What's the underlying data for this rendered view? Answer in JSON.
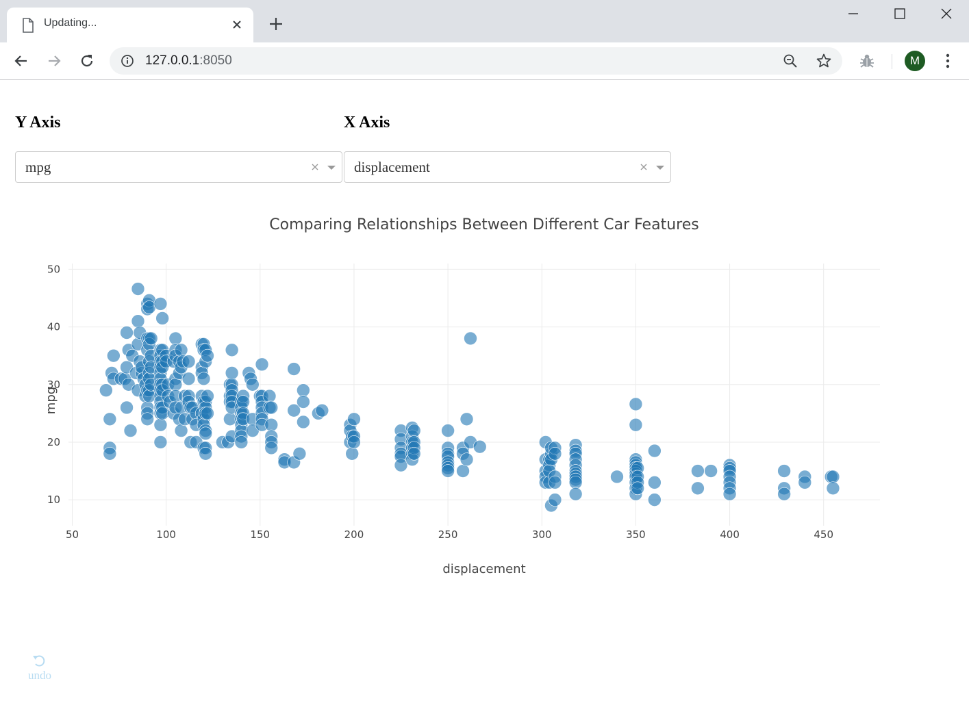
{
  "browser": {
    "tab_title": "Updating...",
    "url_host": "127.0.0.1",
    "url_port": ":8050",
    "avatar_letter": "M"
  },
  "controls": {
    "y_axis_label": "Y Axis",
    "x_axis_label": "X Axis",
    "y_dropdown_value": "mpg",
    "x_dropdown_value": "displacement"
  },
  "undo_label": "undo",
  "colors": {
    "marker": "#1f77b4",
    "undo": "#b8dcf2"
  },
  "chart_data": {
    "type": "scatter",
    "title": "Comparing Relationships Between Different Car Features",
    "xlabel": "displacement",
    "ylabel": "mpg",
    "xlim": [
      48,
      480
    ],
    "ylim": [
      5.5,
      51
    ],
    "xticks": [
      50,
      100,
      150,
      200,
      250,
      300,
      350,
      400,
      450
    ],
    "yticks": [
      10,
      20,
      30,
      40,
      50
    ],
    "grid": true,
    "series": [
      {
        "points": [
          [
            68,
            29
          ],
          [
            70,
            24
          ],
          [
            70,
            19
          ],
          [
            70,
            18
          ],
          [
            72,
            35
          ],
          [
            71,
            32
          ],
          [
            72,
            31
          ],
          [
            76,
            31
          ],
          [
            78,
            31
          ],
          [
            79,
            33
          ],
          [
            79,
            39
          ],
          [
            79,
            26
          ],
          [
            80,
            36
          ],
          [
            80,
            30
          ],
          [
            81,
            22
          ],
          [
            82,
            35
          ],
          [
            84,
            32
          ],
          [
            85,
            46.6
          ],
          [
            85,
            41
          ],
          [
            85,
            37
          ],
          [
            85,
            29
          ],
          [
            86,
            39
          ],
          [
            86,
            34
          ],
          [
            87,
            32
          ],
          [
            87,
            33
          ],
          [
            88,
            31
          ],
          [
            89,
            30
          ],
          [
            89,
            28
          ],
          [
            90,
            44
          ],
          [
            90,
            43.1
          ],
          [
            90,
            38
          ],
          [
            90,
            36
          ],
          [
            90,
            29
          ],
          [
            90,
            26
          ],
          [
            90,
            25
          ],
          [
            90,
            24
          ],
          [
            91,
            44.6
          ],
          [
            91,
            43.4
          ],
          [
            91,
            38
          ],
          [
            91,
            37
          ],
          [
            91,
            34
          ],
          [
            91,
            32
          ],
          [
            91,
            31
          ],
          [
            91,
            29
          ],
          [
            91,
            28
          ],
          [
            92,
            38
          ],
          [
            92,
            35
          ],
          [
            92,
            33
          ],
          [
            92,
            30
          ],
          [
            97,
            44
          ],
          [
            97,
            36
          ],
          [
            97,
            35
          ],
          [
            97,
            34
          ],
          [
            97,
            33
          ],
          [
            97,
            32
          ],
          [
            97,
            31
          ],
          [
            97,
            30
          ],
          [
            97,
            29
          ],
          [
            97,
            28
          ],
          [
            97,
            27
          ],
          [
            97,
            26
          ],
          [
            97,
            25
          ],
          [
            97,
            23
          ],
          [
            97,
            20
          ],
          [
            98,
            41.5
          ],
          [
            98,
            36
          ],
          [
            98,
            34
          ],
          [
            98,
            33
          ],
          [
            98,
            30
          ],
          [
            98,
            29
          ],
          [
            98,
            26
          ],
          [
            98,
            25
          ],
          [
            100,
            35
          ],
          [
            100,
            34
          ],
          [
            101,
            30
          ],
          [
            101,
            28
          ],
          [
            102,
            27
          ],
          [
            104,
            25
          ],
          [
            104,
            34
          ],
          [
            105,
            38
          ],
          [
            105,
            36
          ],
          [
            105,
            35
          ],
          [
            105,
            31
          ],
          [
            105,
            30
          ],
          [
            105,
            28
          ],
          [
            105,
            26
          ],
          [
            107,
            34
          ],
          [
            107,
            32
          ],
          [
            107,
            24
          ],
          [
            108,
            22
          ],
          [
            108,
            36
          ],
          [
            108,
            33
          ],
          [
            108,
            26
          ],
          [
            109,
            34
          ],
          [
            110,
            28
          ],
          [
            110,
            24
          ],
          [
            112,
            34
          ],
          [
            112,
            31
          ],
          [
            112,
            28
          ],
          [
            112,
            27
          ],
          [
            113,
            26
          ],
          [
            113,
            20
          ],
          [
            114,
            26
          ],
          [
            114,
            24
          ],
          [
            116,
            25
          ],
          [
            116,
            23
          ],
          [
            116,
            20
          ],
          [
            119,
            37
          ],
          [
            119,
            33
          ],
          [
            119,
            32
          ],
          [
            119,
            28
          ],
          [
            119,
            25
          ],
          [
            120,
            24
          ],
          [
            120,
            37
          ],
          [
            120,
            36
          ],
          [
            120,
            31
          ],
          [
            120,
            27
          ],
          [
            120,
            23
          ],
          [
            120,
            19
          ],
          [
            121,
            36
          ],
          [
            121,
            34
          ],
          [
            121,
            27
          ],
          [
            121,
            26
          ],
          [
            121,
            25
          ],
          [
            121,
            22
          ],
          [
            121,
            21.5
          ],
          [
            121,
            19
          ],
          [
            121,
            18
          ],
          [
            122,
            35
          ],
          [
            122,
            28
          ],
          [
            122,
            25
          ],
          [
            130,
            20
          ],
          [
            133,
            20
          ],
          [
            134,
            30
          ],
          [
            134,
            28
          ],
          [
            134,
            27
          ],
          [
            134,
            24
          ],
          [
            135,
            36
          ],
          [
            135,
            32
          ],
          [
            135,
            30
          ],
          [
            135,
            29
          ],
          [
            135,
            28
          ],
          [
            135,
            27
          ],
          [
            135,
            26
          ],
          [
            135,
            21
          ],
          [
            140,
            27
          ],
          [
            140,
            26
          ],
          [
            140,
            25
          ],
          [
            140,
            24
          ],
          [
            140,
            23
          ],
          [
            140,
            22
          ],
          [
            140,
            21
          ],
          [
            140,
            20
          ],
          [
            141,
            28
          ],
          [
            141,
            27
          ],
          [
            141,
            25
          ],
          [
            141,
            24
          ],
          [
            144,
            32
          ],
          [
            145,
            31
          ],
          [
            146,
            30
          ],
          [
            146,
            24
          ],
          [
            146,
            22
          ],
          [
            150,
            28
          ],
          [
            151,
            33.5
          ],
          [
            151,
            28
          ],
          [
            151,
            27
          ],
          [
            151,
            26
          ],
          [
            151,
            25
          ],
          [
            151,
            24
          ],
          [
            151,
            23
          ],
          [
            155,
            28
          ],
          [
            155,
            26
          ],
          [
            156,
            26
          ],
          [
            156,
            23
          ],
          [
            156,
            21
          ],
          [
            156,
            20
          ],
          [
            156,
            19
          ],
          [
            163,
            17
          ],
          [
            163,
            16.5
          ],
          [
            168,
            32.7
          ],
          [
            168,
            25.5
          ],
          [
            168,
            16.5
          ],
          [
            171,
            18
          ],
          [
            173,
            29
          ],
          [
            173,
            27
          ],
          [
            173,
            23.5
          ],
          [
            181,
            25
          ],
          [
            183,
            25.5
          ],
          [
            198,
            23
          ],
          [
            198,
            22
          ],
          [
            198,
            20
          ],
          [
            199,
            21
          ],
          [
            199,
            18
          ],
          [
            200,
            24
          ],
          [
            200,
            21
          ],
          [
            200,
            20
          ],
          [
            225,
            22
          ],
          [
            225,
            20.5
          ],
          [
            225,
            19
          ],
          [
            225,
            18
          ],
          [
            225,
            17.5
          ],
          [
            225,
            16
          ],
          [
            231,
            22.5
          ],
          [
            231,
            21
          ],
          [
            231,
            20
          ],
          [
            231,
            19
          ],
          [
            231,
            18
          ],
          [
            231,
            17
          ],
          [
            232,
            22
          ],
          [
            232,
            20
          ],
          [
            232,
            19
          ],
          [
            232,
            18
          ],
          [
            250,
            22
          ],
          [
            250,
            19
          ],
          [
            250,
            18
          ],
          [
            250,
            17.5
          ],
          [
            250,
            16.5
          ],
          [
            250,
            16
          ],
          [
            250,
            15.5
          ],
          [
            250,
            15
          ],
          [
            258,
            19
          ],
          [
            258,
            18
          ],
          [
            258,
            15
          ],
          [
            260,
            24
          ],
          [
            260,
            17
          ],
          [
            262,
            20
          ],
          [
            262,
            38
          ],
          [
            267,
            19.2
          ],
          [
            302,
            20
          ],
          [
            302,
            17
          ],
          [
            302,
            15
          ],
          [
            302,
            14
          ],
          [
            302,
            13
          ],
          [
            304,
            17
          ],
          [
            304,
            16
          ],
          [
            304,
            15
          ],
          [
            304,
            13
          ],
          [
            305,
            18
          ],
          [
            305,
            19
          ],
          [
            305,
            17
          ],
          [
            305,
            9
          ],
          [
            307,
            19
          ],
          [
            307,
            18
          ],
          [
            307,
            14
          ],
          [
            307,
            13
          ],
          [
            307,
            10
          ],
          [
            318,
            19.5
          ],
          [
            318,
            18.5
          ],
          [
            318,
            18
          ],
          [
            318,
            17
          ],
          [
            318,
            16
          ],
          [
            318,
            15
          ],
          [
            318,
            14.5
          ],
          [
            318,
            14
          ],
          [
            318,
            13.5
          ],
          [
            318,
            13
          ],
          [
            318,
            11
          ],
          [
            340,
            14
          ],
          [
            350,
            26.6
          ],
          [
            350,
            23
          ],
          [
            350,
            17
          ],
          [
            350,
            16.5
          ],
          [
            350,
            16
          ],
          [
            350,
            15.5
          ],
          [
            350,
            15
          ],
          [
            350,
            14.5
          ],
          [
            350,
            14
          ],
          [
            350,
            13
          ],
          [
            350,
            12
          ],
          [
            350,
            11
          ],
          [
            351,
            15.5
          ],
          [
            351,
            14
          ],
          [
            351,
            13
          ],
          [
            351,
            12
          ],
          [
            360,
            18.5
          ],
          [
            360,
            13
          ],
          [
            360,
            10
          ],
          [
            383,
            15
          ],
          [
            383,
            12
          ],
          [
            390,
            15
          ],
          [
            400,
            16
          ],
          [
            400,
            15.5
          ],
          [
            400,
            15
          ],
          [
            400,
            14
          ],
          [
            400,
            13
          ],
          [
            400,
            12
          ],
          [
            400,
            11
          ],
          [
            429,
            15
          ],
          [
            429,
            12
          ],
          [
            429,
            11
          ],
          [
            440,
            14
          ],
          [
            440,
            13
          ],
          [
            454,
            14
          ],
          [
            455,
            14
          ],
          [
            455,
            12
          ]
        ]
      }
    ]
  }
}
